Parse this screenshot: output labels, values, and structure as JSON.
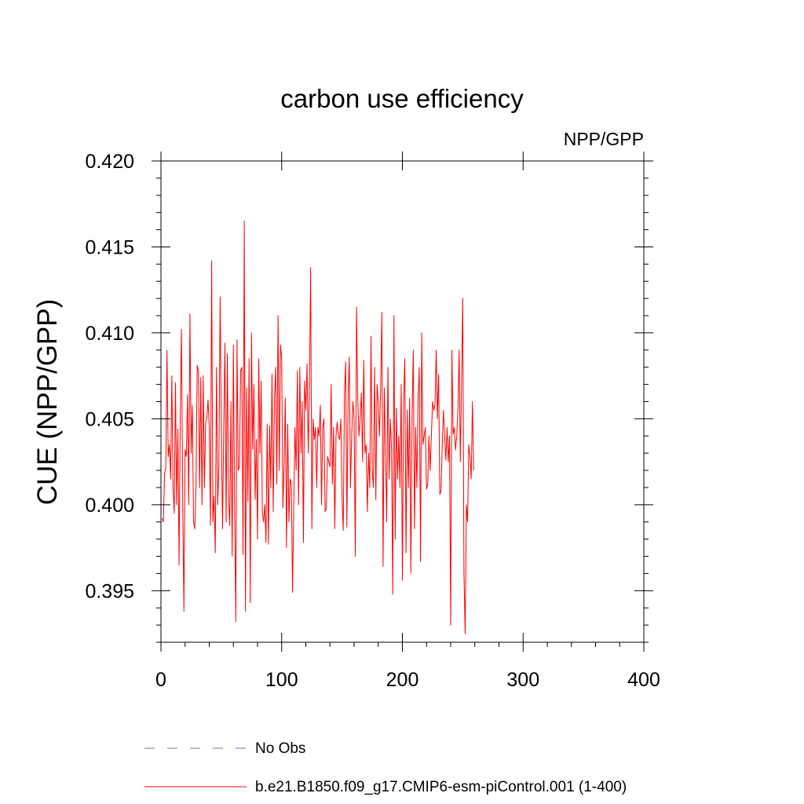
{
  "chart_data": {
    "type": "line",
    "title": "carbon use efficiency",
    "subtitle": "NPP/GPP",
    "xlabel": "",
    "ylabel": "CUE  (NPP/GPP)",
    "xlim": [
      0,
      400
    ],
    "ylim": [
      0.392,
      0.42
    ],
    "x_ticks": [
      0,
      100,
      200,
      300,
      400
    ],
    "x_tick_labels": [
      "0",
      "100",
      "200",
      "300",
      "400"
    ],
    "y_ticks": [
      0.395,
      0.4,
      0.405,
      0.41,
      0.415,
      0.42
    ],
    "y_tick_labels": [
      "0.395",
      "0.400",
      "0.405",
      "0.410",
      "0.415",
      "0.420"
    ],
    "grid": false,
    "legend_position": "bottom",
    "series": [
      {
        "name": "b.e21.B1850.f09_g17.CMIP6-esm-piControl.001 (1-400)",
        "color": "#ff0000",
        "style": "solid",
        "x_start": 1,
        "x_step": 1,
        "values": [
          0.3992,
          0.399,
          0.4018,
          0.4022,
          0.409,
          0.4028,
          0.4035,
          0.4015,
          0.4075,
          0.401,
          0.3995,
          0.4071,
          0.4,
          0.4044,
          0.3965,
          0.4052,
          0.4102,
          0.4002,
          0.3938,
          0.4032,
          0.4028,
          0.4064,
          0.4,
          0.4111,
          0.403,
          0.4058,
          0.399,
          0.3986,
          0.401,
          0.4081,
          0.4078,
          0.401,
          0.4074,
          0.4,
          0.4075,
          0.401,
          0.4048,
          0.405,
          0.4061,
          0.4045,
          0.3988,
          0.4142,
          0.399,
          0.4005,
          0.3972,
          0.408,
          0.4,
          0.4022,
          0.4121,
          0.4045,
          0.3986,
          0.4044,
          0.4094,
          0.399,
          0.4088,
          0.4003,
          0.3988,
          0.406,
          0.397,
          0.4093,
          0.4,
          0.3932,
          0.4096,
          0.402,
          0.4022,
          0.4078,
          0.408,
          0.3971,
          0.4165,
          0.3938,
          0.4068,
          0.4002,
          0.4085,
          0.3943,
          0.41,
          0.4032,
          0.407,
          0.4003,
          0.4038,
          0.398,
          0.4085,
          0.403,
          0.4072,
          0.3995,
          0.399,
          0.4,
          0.3978,
          0.4047,
          0.3977,
          0.4046,
          0.401,
          0.4076,
          0.3996,
          0.406,
          0.408,
          0.4012,
          0.411,
          0.402,
          0.4093,
          0.4085,
          0.3998,
          0.4022,
          0.4062,
          0.3975,
          0.4047,
          0.399,
          0.4015,
          0.4012,
          0.3949,
          0.4,
          0.4045,
          0.402,
          0.4078,
          0.4,
          0.408,
          0.403,
          0.406,
          0.3978,
          0.4072,
          0.4055,
          0.4082,
          0.403,
          0.4068,
          0.4138,
          0.3986,
          0.405,
          0.4038,
          0.4045,
          0.401,
          0.4045,
          0.404,
          0.4058,
          0.4,
          0.4045,
          0.405,
          0.3996,
          0.3998,
          0.4028,
          0.4025,
          0.4022,
          0.407,
          0.4012,
          0.4045,
          0.3986,
          0.404,
          0.4048,
          0.404,
          0.4038,
          0.405,
          0.4004,
          0.3985,
          0.4064,
          0.4083,
          0.3987,
          0.406,
          0.4086,
          0.401,
          0.404,
          0.406,
          0.405,
          0.397,
          0.4115,
          0.4062,
          0.404,
          0.405,
          0.4065,
          0.4025,
          0.4084,
          0.403,
          0.4035,
          0.3996,
          0.403,
          0.401,
          0.4098,
          0.402,
          0.401,
          0.408,
          0.4003,
          0.407,
          0.406,
          0.404,
          0.4068,
          0.4112,
          0.3964,
          0.4068,
          0.403,
          0.399,
          0.408,
          0.4015,
          0.405,
          0.4033,
          0.3948,
          0.411,
          0.398,
          0.4056,
          0.4015,
          0.404,
          0.401,
          0.407,
          0.3956,
          0.406,
          0.4085,
          0.3972,
          0.4055,
          0.401,
          0.4062,
          0.396,
          0.405,
          0.409,
          0.3986,
          0.4045,
          0.401,
          0.4062,
          0.408,
          0.3967,
          0.41,
          0.4035,
          0.404,
          0.4045,
          0.4009,
          0.4012,
          0.404,
          0.402,
          0.404,
          0.406,
          0.4055,
          0.4058,
          0.409,
          0.405,
          0.4076,
          0.4006,
          0.4008,
          0.4035,
          0.4055,
          0.404,
          0.4026,
          0.4045,
          0.4025,
          0.404,
          0.393,
          0.409,
          0.4041,
          0.4045,
          0.4032,
          0.404,
          0.4055,
          0.409,
          0.4025,
          0.4071,
          0.412,
          0.396,
          0.3925,
          0.4,
          0.399,
          0.4035,
          0.4028,
          0.4015,
          0.406,
          0.402
        ]
      },
      {
        "name": "No Obs",
        "color": "#7070c0",
        "style": "dashed",
        "values": []
      }
    ]
  }
}
